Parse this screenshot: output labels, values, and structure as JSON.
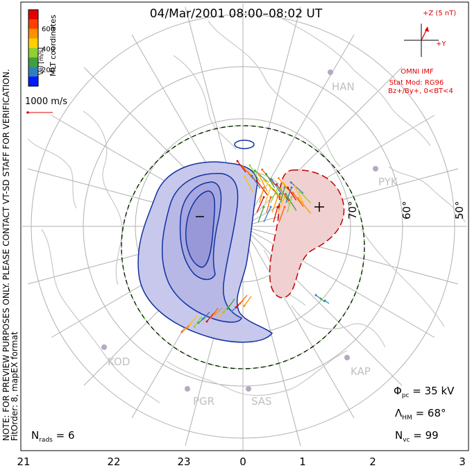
{
  "title": "04/Mar/2001 08:00–08:02 UT",
  "note": "NOTE: FOR PREVIEW PURPOSES ONLY. PLEASE CONTACT VT-SD STAFF FOR VERIFICATION.",
  "fit_info": "FitOrder: 8, mapEX format",
  "legend": {
    "label": "Vel [m/s]",
    "coords": "MLT coordinates",
    "ticks": [
      "200",
      "400",
      "600"
    ],
    "colors": [
      "#0019ff",
      "#2f7fbf",
      "#3fa040",
      "#90d030",
      "#ffd000",
      "#ff9000",
      "#ff4000",
      "#e00000"
    ],
    "ref_vector": "1000 m/s"
  },
  "imf": {
    "z_label": "+Z (5 nT)",
    "y_label": "+Y",
    "source": "OMNI IMF",
    "model": "Stat Mod: RG96",
    "condition": "Bz+/By+, 0<BT<4"
  },
  "lat_labels": [
    "70°",
    "60°",
    "50°"
  ],
  "mlt_labels": [
    "21",
    "22",
    "23",
    "0",
    "1",
    "2",
    "3"
  ],
  "stations": [
    "HAN",
    "PYK",
    "KOD",
    "PGR",
    "SAS",
    "KAP"
  ],
  "stats": {
    "phi_pc": "35 kV",
    "lambda_hm": "68°",
    "n_vc": "99",
    "n_rads": "6"
  },
  "colors": {
    "negative_fill": "#c8c8ec",
    "negative_line": "#1030a0",
    "positive_fill": "#f0d0d0",
    "positive_line": "#c00000",
    "boundary": "#000000",
    "boundary_dash": "#60c040",
    "grid": "#b0b0b0",
    "coast": "#c8c8c8",
    "station": "#b8a8c0",
    "imf": "#e00000"
  }
}
